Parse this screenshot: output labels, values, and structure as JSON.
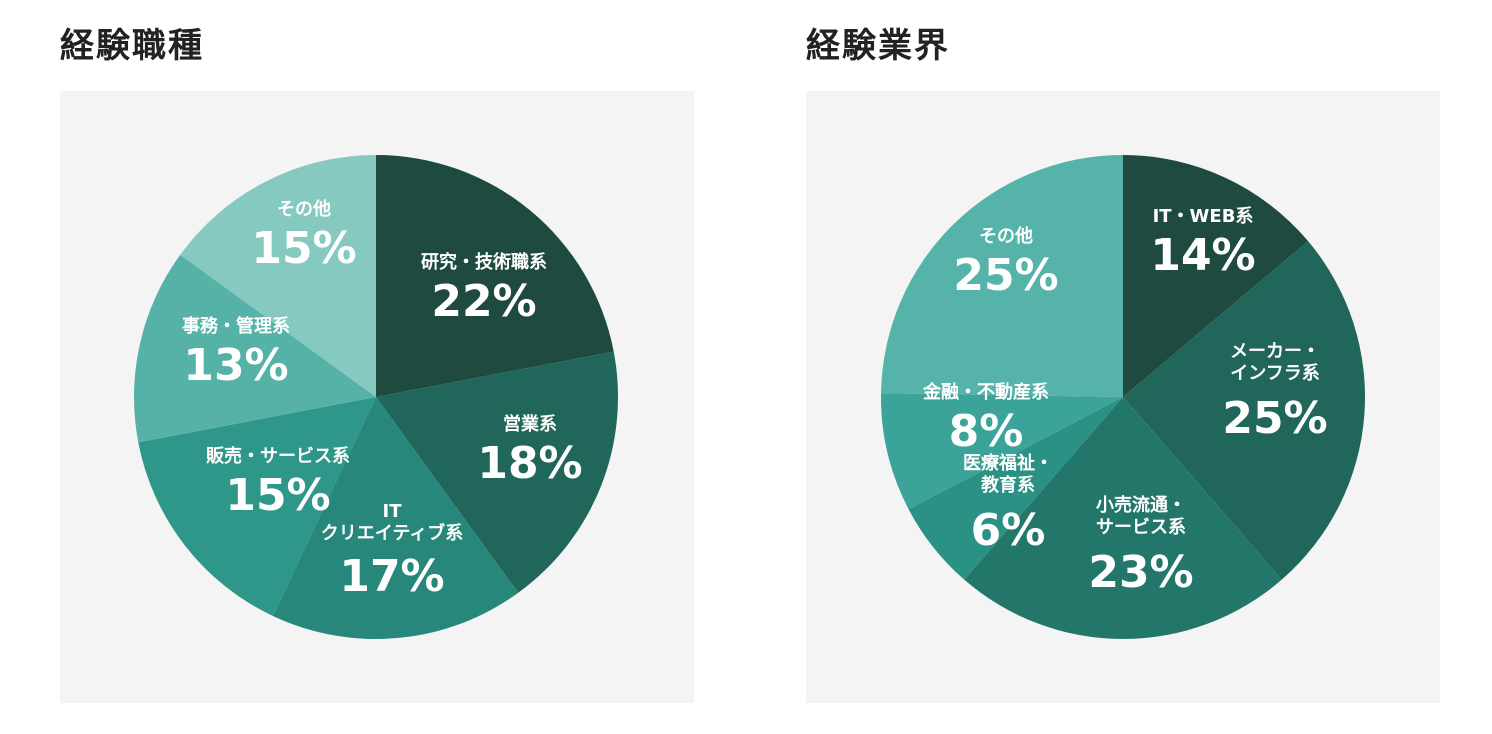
{
  "chart_data": [
    {
      "type": "pie",
      "title": "経験職種",
      "slices": [
        {
          "lines": [
            "研究・技術職系"
          ],
          "value": 22,
          "pct": "22%",
          "color": "#1e4a40"
        },
        {
          "lines": [
            "営業系"
          ],
          "value": 18,
          "pct": "18%",
          "color": "#21665a"
        },
        {
          "lines": [
            "IT",
            "クリエイティブ系"
          ],
          "value": 17,
          "pct": "17%",
          "color": "#26877a"
        },
        {
          "lines": [
            "販売・サービス系"
          ],
          "value": 15,
          "pct": "15%",
          "color": "#2f968a"
        },
        {
          "lines": [
            "事務・管理系"
          ],
          "value": 13,
          "pct": "13%",
          "color": "#56b1a7"
        },
        {
          "lines": [
            "その他"
          ],
          "value": 15,
          "pct": "15%",
          "color": "#86c9c0"
        }
      ]
    },
    {
      "type": "pie",
      "title": "経験業界",
      "slices": [
        {
          "lines": [
            "IT・WEB系"
          ],
          "value": 14,
          "pct": "14%",
          "color": "#1e4a40"
        },
        {
          "lines": [
            "メーカー・",
            "インフラ系"
          ],
          "value": 25,
          "pct": "25%",
          "color": "#21665a"
        },
        {
          "lines": [
            "小売流通・",
            "サービス系"
          ],
          "value": 23,
          "pct": "23%",
          "color": "#23776a"
        },
        {
          "lines": [
            "医療福祉・",
            "教育系"
          ],
          "value": 6,
          "pct": "6%",
          "color": "#2a9184"
        },
        {
          "lines": [
            "金融・不動産系"
          ],
          "value": 8,
          "pct": "8%",
          "color": "#3ba399"
        },
        {
          "lines": [
            "その他"
          ],
          "value": 25,
          "pct": "25%",
          "color": "#56b3a9"
        }
      ]
    }
  ]
}
